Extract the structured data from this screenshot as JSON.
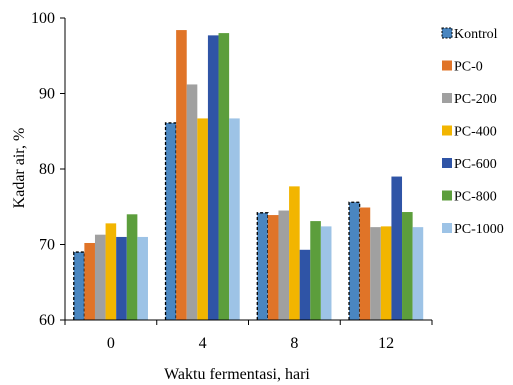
{
  "chart_data": {
    "type": "bar",
    "title": "",
    "xlabel": "Waktu fermentasi, hari",
    "ylabel": "Kadar air, %",
    "ylim": [
      60,
      100
    ],
    "yticks": [
      60,
      70,
      80,
      90,
      100
    ],
    "categories": [
      "0",
      "4",
      "8",
      "12"
    ],
    "legend_position": "right",
    "grid": false,
    "series": [
      {
        "name": "Kontrol",
        "color": "#4a86c0",
        "values": [
          69.0,
          86.1,
          74.2,
          75.6
        ],
        "error_bars": "dashed"
      },
      {
        "name": "PC-0",
        "color": "#e07428",
        "values": [
          70.2,
          98.4,
          73.9,
          74.9
        ]
      },
      {
        "name": "PC-200",
        "color": "#a0a0a0",
        "values": [
          71.3,
          91.2,
          74.5,
          72.3
        ]
      },
      {
        "name": "PC-400",
        "color": "#f2b500",
        "values": [
          72.8,
          86.7,
          77.7,
          72.4
        ]
      },
      {
        "name": "PC-600",
        "color": "#2f54a6",
        "values": [
          71.0,
          97.7,
          69.3,
          79.0
        ]
      },
      {
        "name": "PC-800",
        "color": "#5c9e3c",
        "values": [
          74.0,
          98.0,
          73.1,
          74.3
        ]
      },
      {
        "name": "PC-1000",
        "color": "#9dc3e6",
        "values": [
          71.0,
          86.7,
          72.4,
          72.3
        ]
      }
    ]
  }
}
